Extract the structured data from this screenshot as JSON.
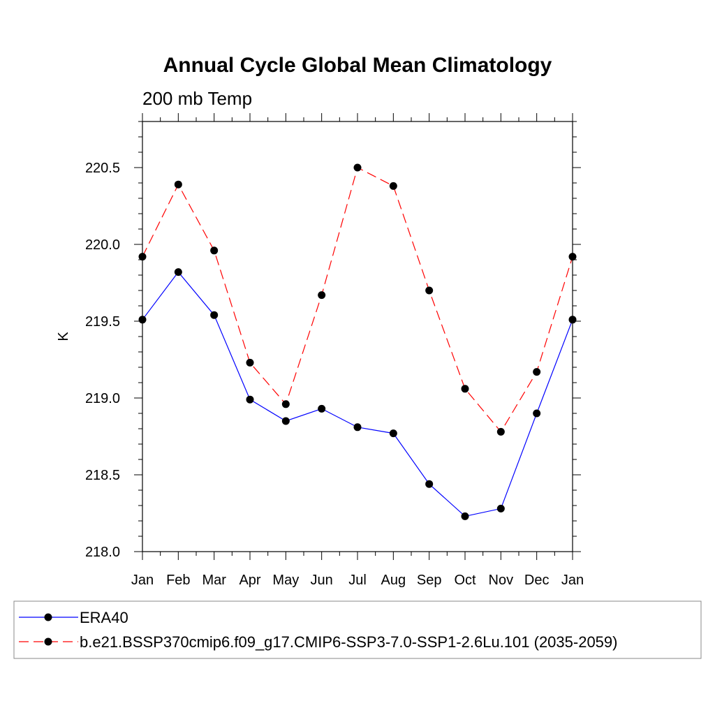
{
  "chart_data": {
    "type": "line",
    "title": "Annual Cycle Global Mean Climatology",
    "subtitle": "200 mb Temp",
    "xlabel": "",
    "ylabel": "K",
    "categories": [
      "Jan",
      "Feb",
      "Mar",
      "Apr",
      "May",
      "Jun",
      "Jul",
      "Aug",
      "Sep",
      "Oct",
      "Nov",
      "Dec",
      "Jan"
    ],
    "ylim": [
      218.0,
      220.8
    ],
    "yticks": [
      "218.0",
      "218.5",
      "219.0",
      "219.5",
      "220.0",
      "220.5"
    ],
    "legend_position": "bottom",
    "series": [
      {
        "name": "ERA40",
        "color": "#0000ff",
        "dash": "solid",
        "values": [
          219.51,
          219.82,
          219.54,
          218.99,
          218.85,
          218.93,
          218.81,
          218.77,
          218.44,
          218.23,
          218.28,
          218.9,
          219.51
        ]
      },
      {
        "name": "b.e21.BSSP370cmip6.f09_g17.CMIP6-SSP3-7.0-SSP1-2.6Lu.101 (2035-2059)",
        "color": "#ff0000",
        "dash": "dashed",
        "values": [
          219.92,
          220.39,
          219.96,
          219.23,
          218.96,
          219.67,
          220.5,
          220.38,
          219.7,
          219.06,
          218.78,
          219.17,
          219.92
        ]
      }
    ]
  }
}
